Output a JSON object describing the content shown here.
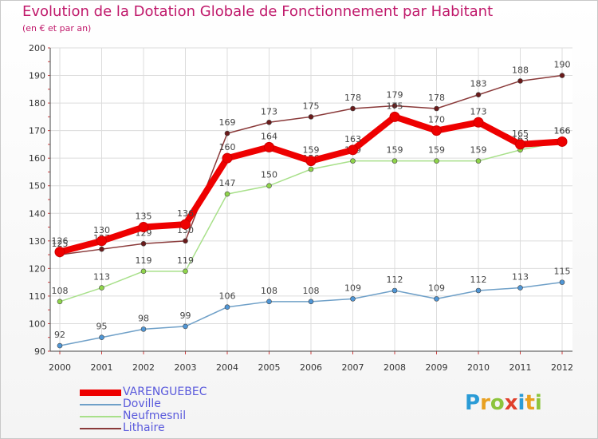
{
  "title": "Evolution de la Dotation Globale de Fonctionnement par Habitant",
  "subtitle": "(en € et par an)",
  "logo": {
    "text": "Proxiti",
    "letters": [
      {
        "ch": "P",
        "color": "#2a9bd6"
      },
      {
        "ch": "r",
        "color": "#e8a020"
      },
      {
        "ch": "o",
        "color": "#8cc43c"
      },
      {
        "ch": "x",
        "color": "#e0402c"
      },
      {
        "ch": "i",
        "color": "#2a9bd6"
      },
      {
        "ch": "t",
        "color": "#e8a020"
      },
      {
        "ch": "i",
        "color": "#8cc43c"
      }
    ]
  },
  "chart_data": {
    "type": "line",
    "title": "Evolution de la Dotation Globale de Fonctionnement par Habitant",
    "subtitle": "(en € et par an)",
    "xlabel": "",
    "ylabel": "",
    "x": [
      "2000",
      "2001",
      "2002",
      "2003",
      "2004",
      "2005",
      "2006",
      "2007",
      "2008",
      "2009",
      "2010",
      "2011",
      "2012"
    ],
    "ylim": [
      90,
      200
    ],
    "yticks": [
      90,
      100,
      110,
      120,
      130,
      140,
      150,
      160,
      170,
      180,
      190,
      200
    ],
    "grid": true,
    "legend_position": "bottom-left",
    "series": [
      {
        "name": "VARENGUEBEC",
        "color": "#ee0000",
        "marker": "#ee0000",
        "values": [
          126,
          130,
          135,
          136,
          160,
          164,
          159,
          163,
          175,
          170,
          173,
          165,
          166
        ]
      },
      {
        "name": "Doville",
        "color": "#6fa0c8",
        "marker": "#4f96d6",
        "values": [
          92,
          95,
          98,
          99,
          106,
          108,
          108,
          109,
          112,
          109,
          112,
          113,
          115
        ]
      },
      {
        "name": "Neufmesnil",
        "color": "#a8e08a",
        "marker": "#8fd44a",
        "values": [
          108,
          113,
          119,
          119,
          147,
          150,
          156,
          159,
          159,
          159,
          159,
          163,
          166
        ]
      },
      {
        "name": "Lithaire",
        "color": "#8a3a3a",
        "marker": "#6a1a1a",
        "values": [
          125,
          127,
          129,
          130,
          169,
          173,
          175,
          178,
          179,
          178,
          183,
          188,
          190
        ]
      }
    ]
  }
}
